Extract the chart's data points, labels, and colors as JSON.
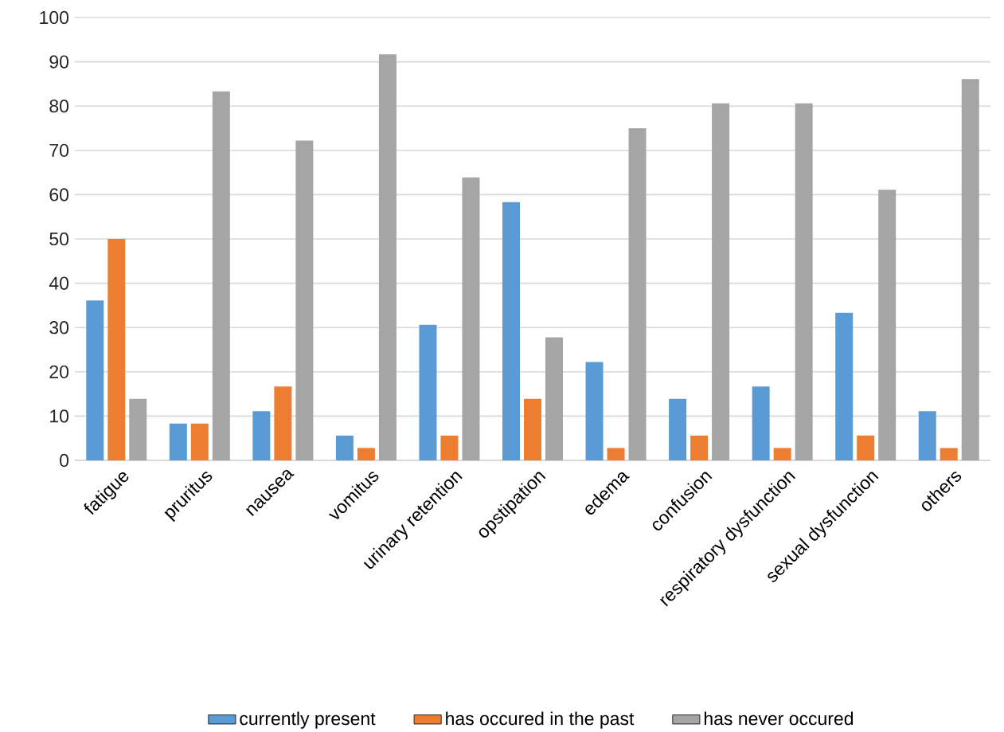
{
  "chart_data": {
    "type": "bar",
    "categories": [
      "fatigue",
      "pruritus",
      "nausea",
      "vomitus",
      "urinary retention",
      "opstipation",
      "edema",
      "confusion",
      "respiratory dysfunction",
      "sexual dysfunction",
      "others"
    ],
    "series": [
      {
        "name": "currently present",
        "color": "#5b9bd5",
        "values": [
          36.1,
          8.3,
          11.1,
          5.6,
          30.6,
          58.3,
          22.2,
          13.9,
          16.7,
          33.3,
          11.1
        ]
      },
      {
        "name": "has occured in the past",
        "color": "#ed7d31",
        "values": [
          50.0,
          8.3,
          16.7,
          2.8,
          5.6,
          13.9,
          2.8,
          5.6,
          2.8,
          5.6,
          2.8
        ]
      },
      {
        "name": "has never occured",
        "color": "#a5a5a5",
        "values": [
          13.9,
          83.3,
          72.2,
          91.7,
          63.9,
          27.8,
          75.0,
          80.6,
          80.6,
          61.1,
          86.1
        ]
      }
    ],
    "ylim": [
      0,
      100
    ],
    "yticks": [
      0,
      10,
      20,
      30,
      40,
      50,
      60,
      70,
      80,
      90,
      100
    ],
    "grid": "y",
    "legend": "bottom"
  }
}
